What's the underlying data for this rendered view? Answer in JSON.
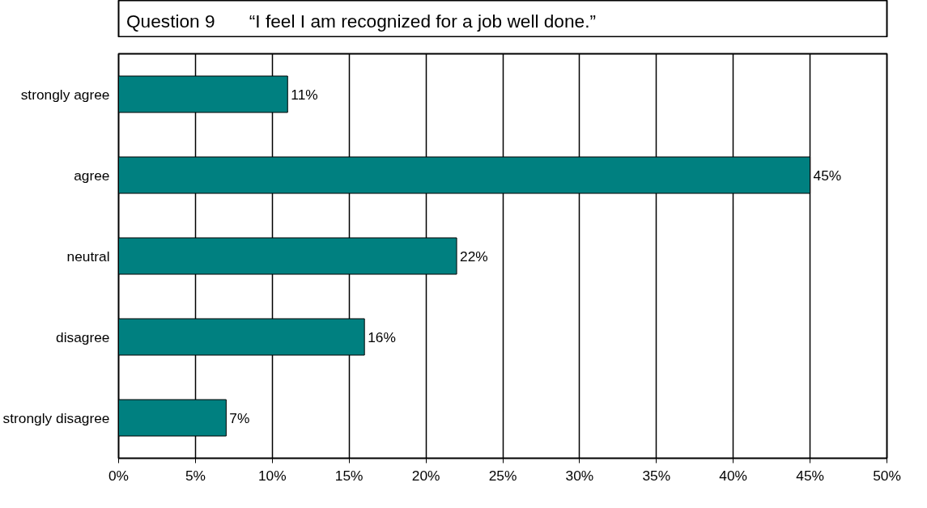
{
  "chart_data": {
    "type": "bar",
    "orientation": "horizontal",
    "title": "Question 9",
    "subtitle": "“I feel I am recognized for a job well done.”",
    "categories": [
      "strongly agree",
      "agree",
      "neutral",
      "disagree",
      "strongly disagree"
    ],
    "values": [
      11,
      45,
      22,
      16,
      7
    ],
    "value_labels": [
      "11%",
      "45%",
      "22%",
      "16%",
      "7%"
    ],
    "color": "#008080",
    "xlim": [
      0,
      50
    ],
    "xticks": [
      {
        "value": 0,
        "label": "0%"
      },
      {
        "value": 5,
        "label": "5%"
      },
      {
        "value": 10,
        "label": "10%"
      },
      {
        "value": 15,
        "label": "15%"
      },
      {
        "value": 20,
        "label": "20%"
      },
      {
        "value": 25,
        "label": "25%"
      },
      {
        "value": 30,
        "label": "30%"
      },
      {
        "value": 35,
        "label": "35%"
      },
      {
        "value": 40,
        "label": "40%"
      },
      {
        "value": 45,
        "label": "45%"
      },
      {
        "value": 50,
        "label": "50%"
      }
    ],
    "grid": "x"
  }
}
